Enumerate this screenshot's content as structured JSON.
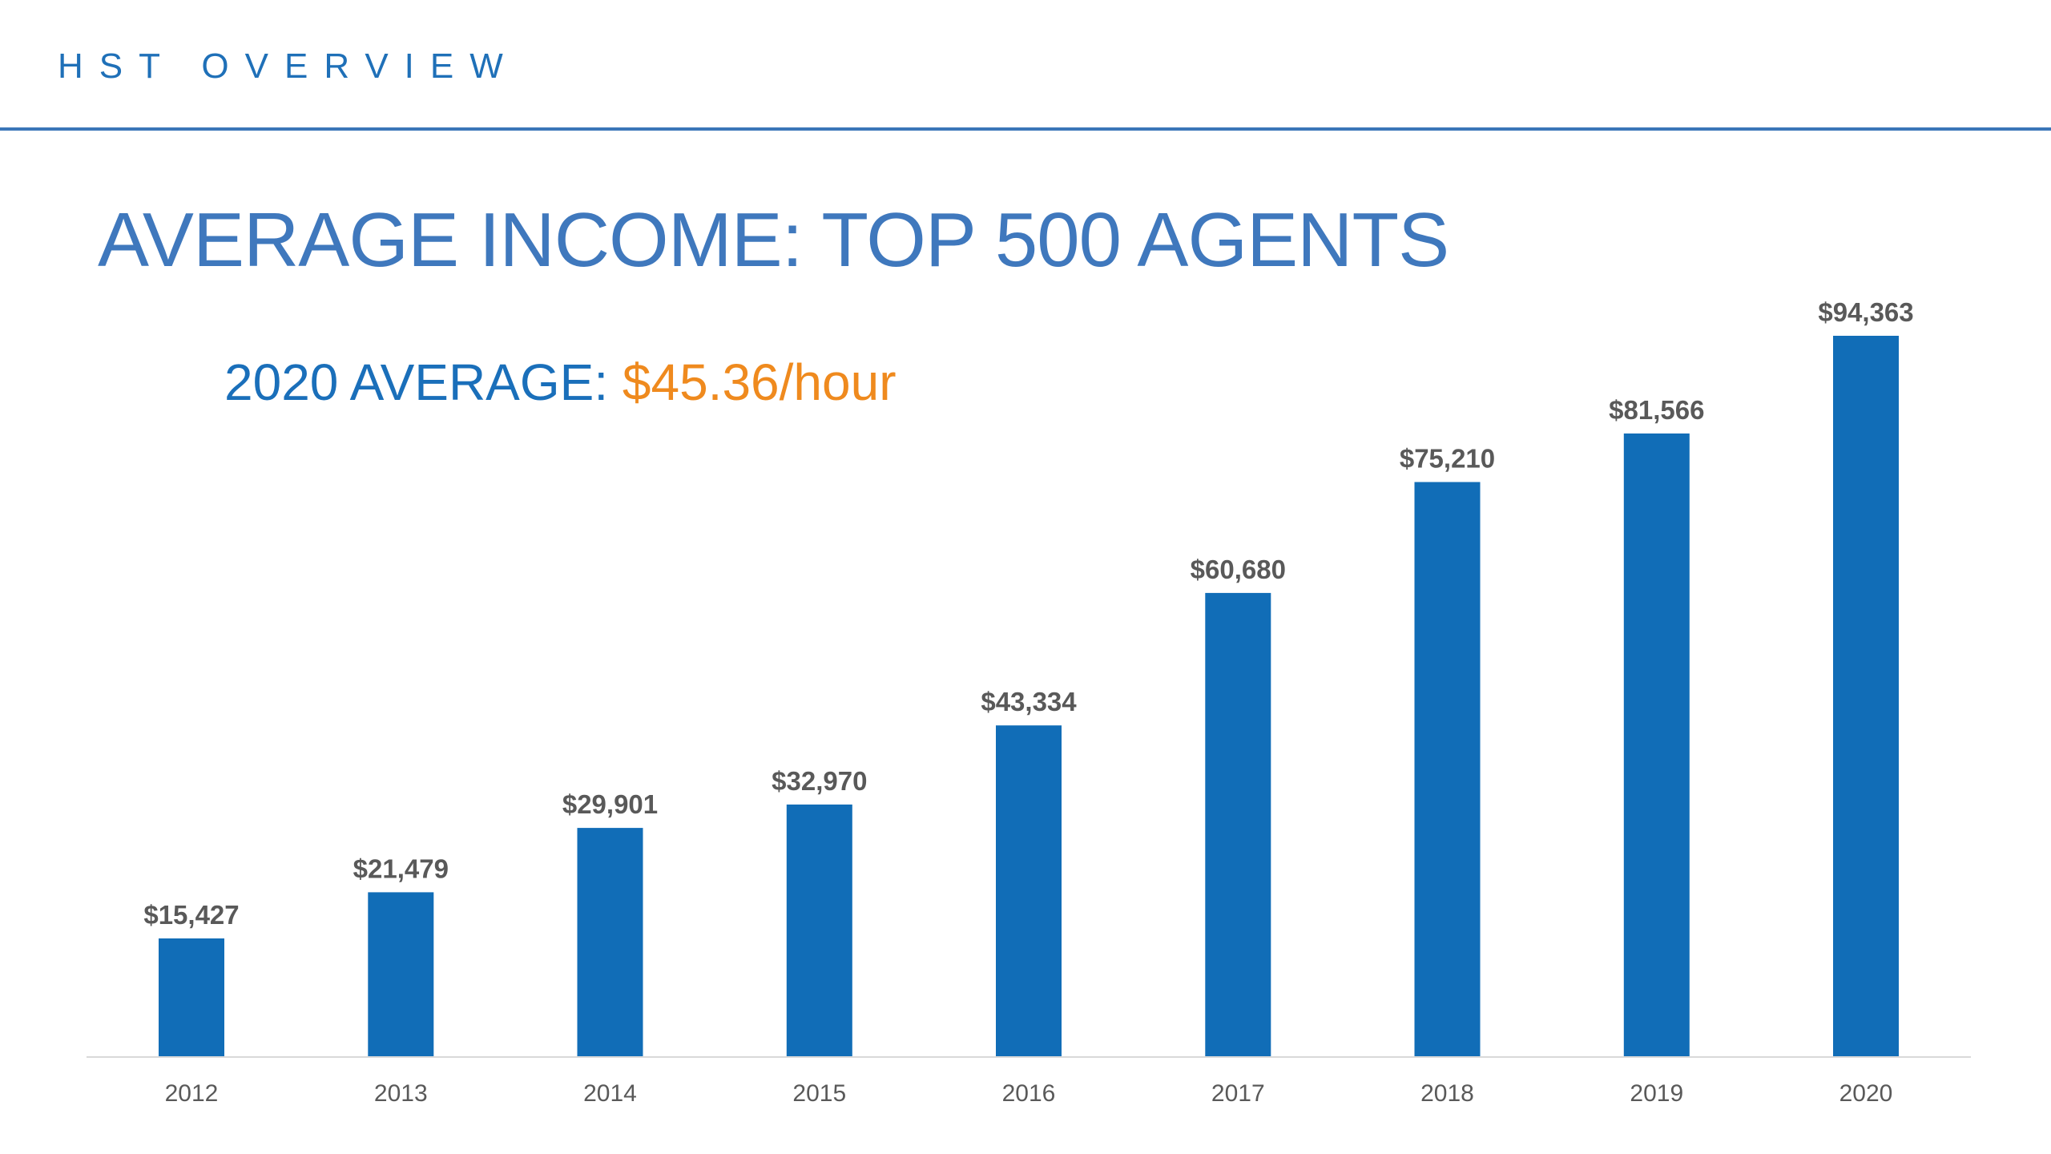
{
  "header": {
    "label": "HST OVERVIEW"
  },
  "title": "AVERAGE INCOME: TOP 500 AGENTS",
  "subtitle": {
    "label": "2020 AVERAGE: ",
    "value": "$45.36/hour"
  },
  "colors": {
    "header": "#1f70b8",
    "rule": "#3a76b8",
    "title": "#3f78bd",
    "subtitle_label": "#1a6fba",
    "subtitle_value": "#ef8a1e",
    "bar": "#116db7",
    "data_label": "#595959",
    "tick_label": "#595959",
    "baseline": "#d9d9d9"
  },
  "chart_data": {
    "type": "bar",
    "title": "AVERAGE INCOME: TOP 500 AGENTS",
    "xlabel": "",
    "ylabel": "",
    "categories": [
      "2012",
      "2013",
      "2014",
      "2015",
      "2016",
      "2017",
      "2018",
      "2019",
      "2020"
    ],
    "values": [
      15427,
      21479,
      29901,
      32970,
      43334,
      60680,
      75210,
      81566,
      94363
    ],
    "data_labels": [
      "$15,427",
      "$21,479",
      "$29,901",
      "$32,970",
      "$43,334",
      "$60,680",
      "$75,210",
      "$81,566",
      "$94,363"
    ],
    "ylim": [
      0,
      94363
    ],
    "grid": false,
    "legend": "none"
  }
}
